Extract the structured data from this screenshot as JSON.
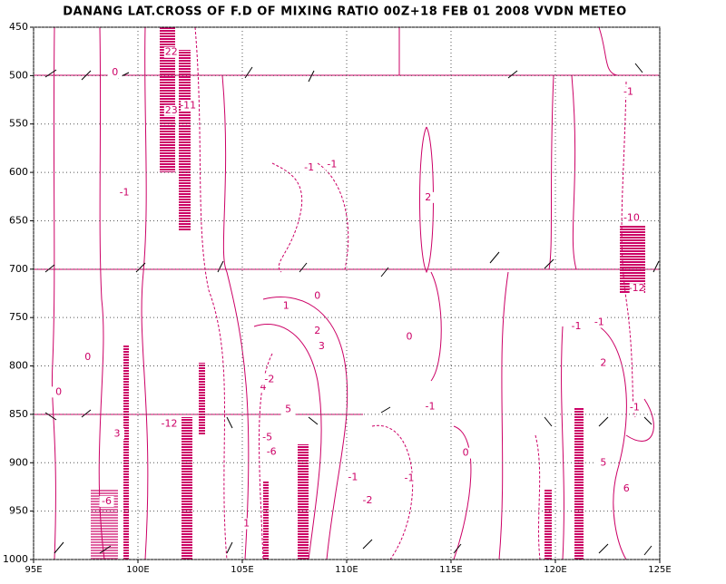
{
  "chart_data": {
    "type": "contour",
    "title": "DANANG LAT.CROSS OF F.D OF MIXING RATIO 00Z+18 FEB 01 2008 VVDN METEO",
    "xlim": [
      95,
      125
    ],
    "ylim": [
      1000,
      450
    ],
    "xticks": [
      {
        "value": 95,
        "label": "95E"
      },
      {
        "value": 100,
        "label": "100E"
      },
      {
        "value": 105,
        "label": "105E"
      },
      {
        "value": 110,
        "label": "110E"
      },
      {
        "value": 115,
        "label": "115E"
      },
      {
        "value": 120,
        "label": "120E"
      },
      {
        "value": 125,
        "label": "125E"
      }
    ],
    "yticks": [
      450,
      500,
      550,
      600,
      650,
      700,
      750,
      800,
      850,
      900,
      950,
      1000
    ],
    "grid": true,
    "color": "#cc0066",
    "contour_labels": {
      "x": [
        101.6,
        101.6,
        102.4,
        99.35,
        108.2,
        109.3,
        113.9,
        98.9,
        108.6,
        107.1,
        108.6,
        108.8,
        106.0,
        107.2,
        106.3,
        106.2,
        106.4,
        101.5,
        97.6,
        96.2,
        114.0,
        113.0,
        110.3,
        115.7,
        113.0,
        123.5,
        123.65,
        123.9,
        123.8,
        122.3,
        121.0,
        122.1,
        123.4,
        122.3,
        98.5,
        105.2,
        111.0,
        99.0
      ],
      "y": [
        476,
        536,
        531,
        621,
        595,
        592,
        626,
        497,
        728,
        738,
        764,
        780,
        822,
        845,
        814,
        874,
        889,
        860,
        791,
        827,
        842,
        916,
        915,
        890,
        770,
        517,
        647,
        720,
        843,
        797,
        759,
        755,
        927,
        900,
        940,
        963,
        939,
        870
      ],
      "values": [
        22,
        23,
        -11,
        -1,
        -1,
        -1,
        2,
        0,
        0,
        1,
        2,
        3,
        4,
        5,
        -2,
        -5,
        -6,
        -12,
        0,
        0,
        -1,
        -1,
        -1,
        0,
        0,
        -1,
        -10,
        -12,
        -1,
        2,
        -1,
        -1,
        6,
        5,
        -6,
        1,
        -2,
        3
      ]
    }
  }
}
